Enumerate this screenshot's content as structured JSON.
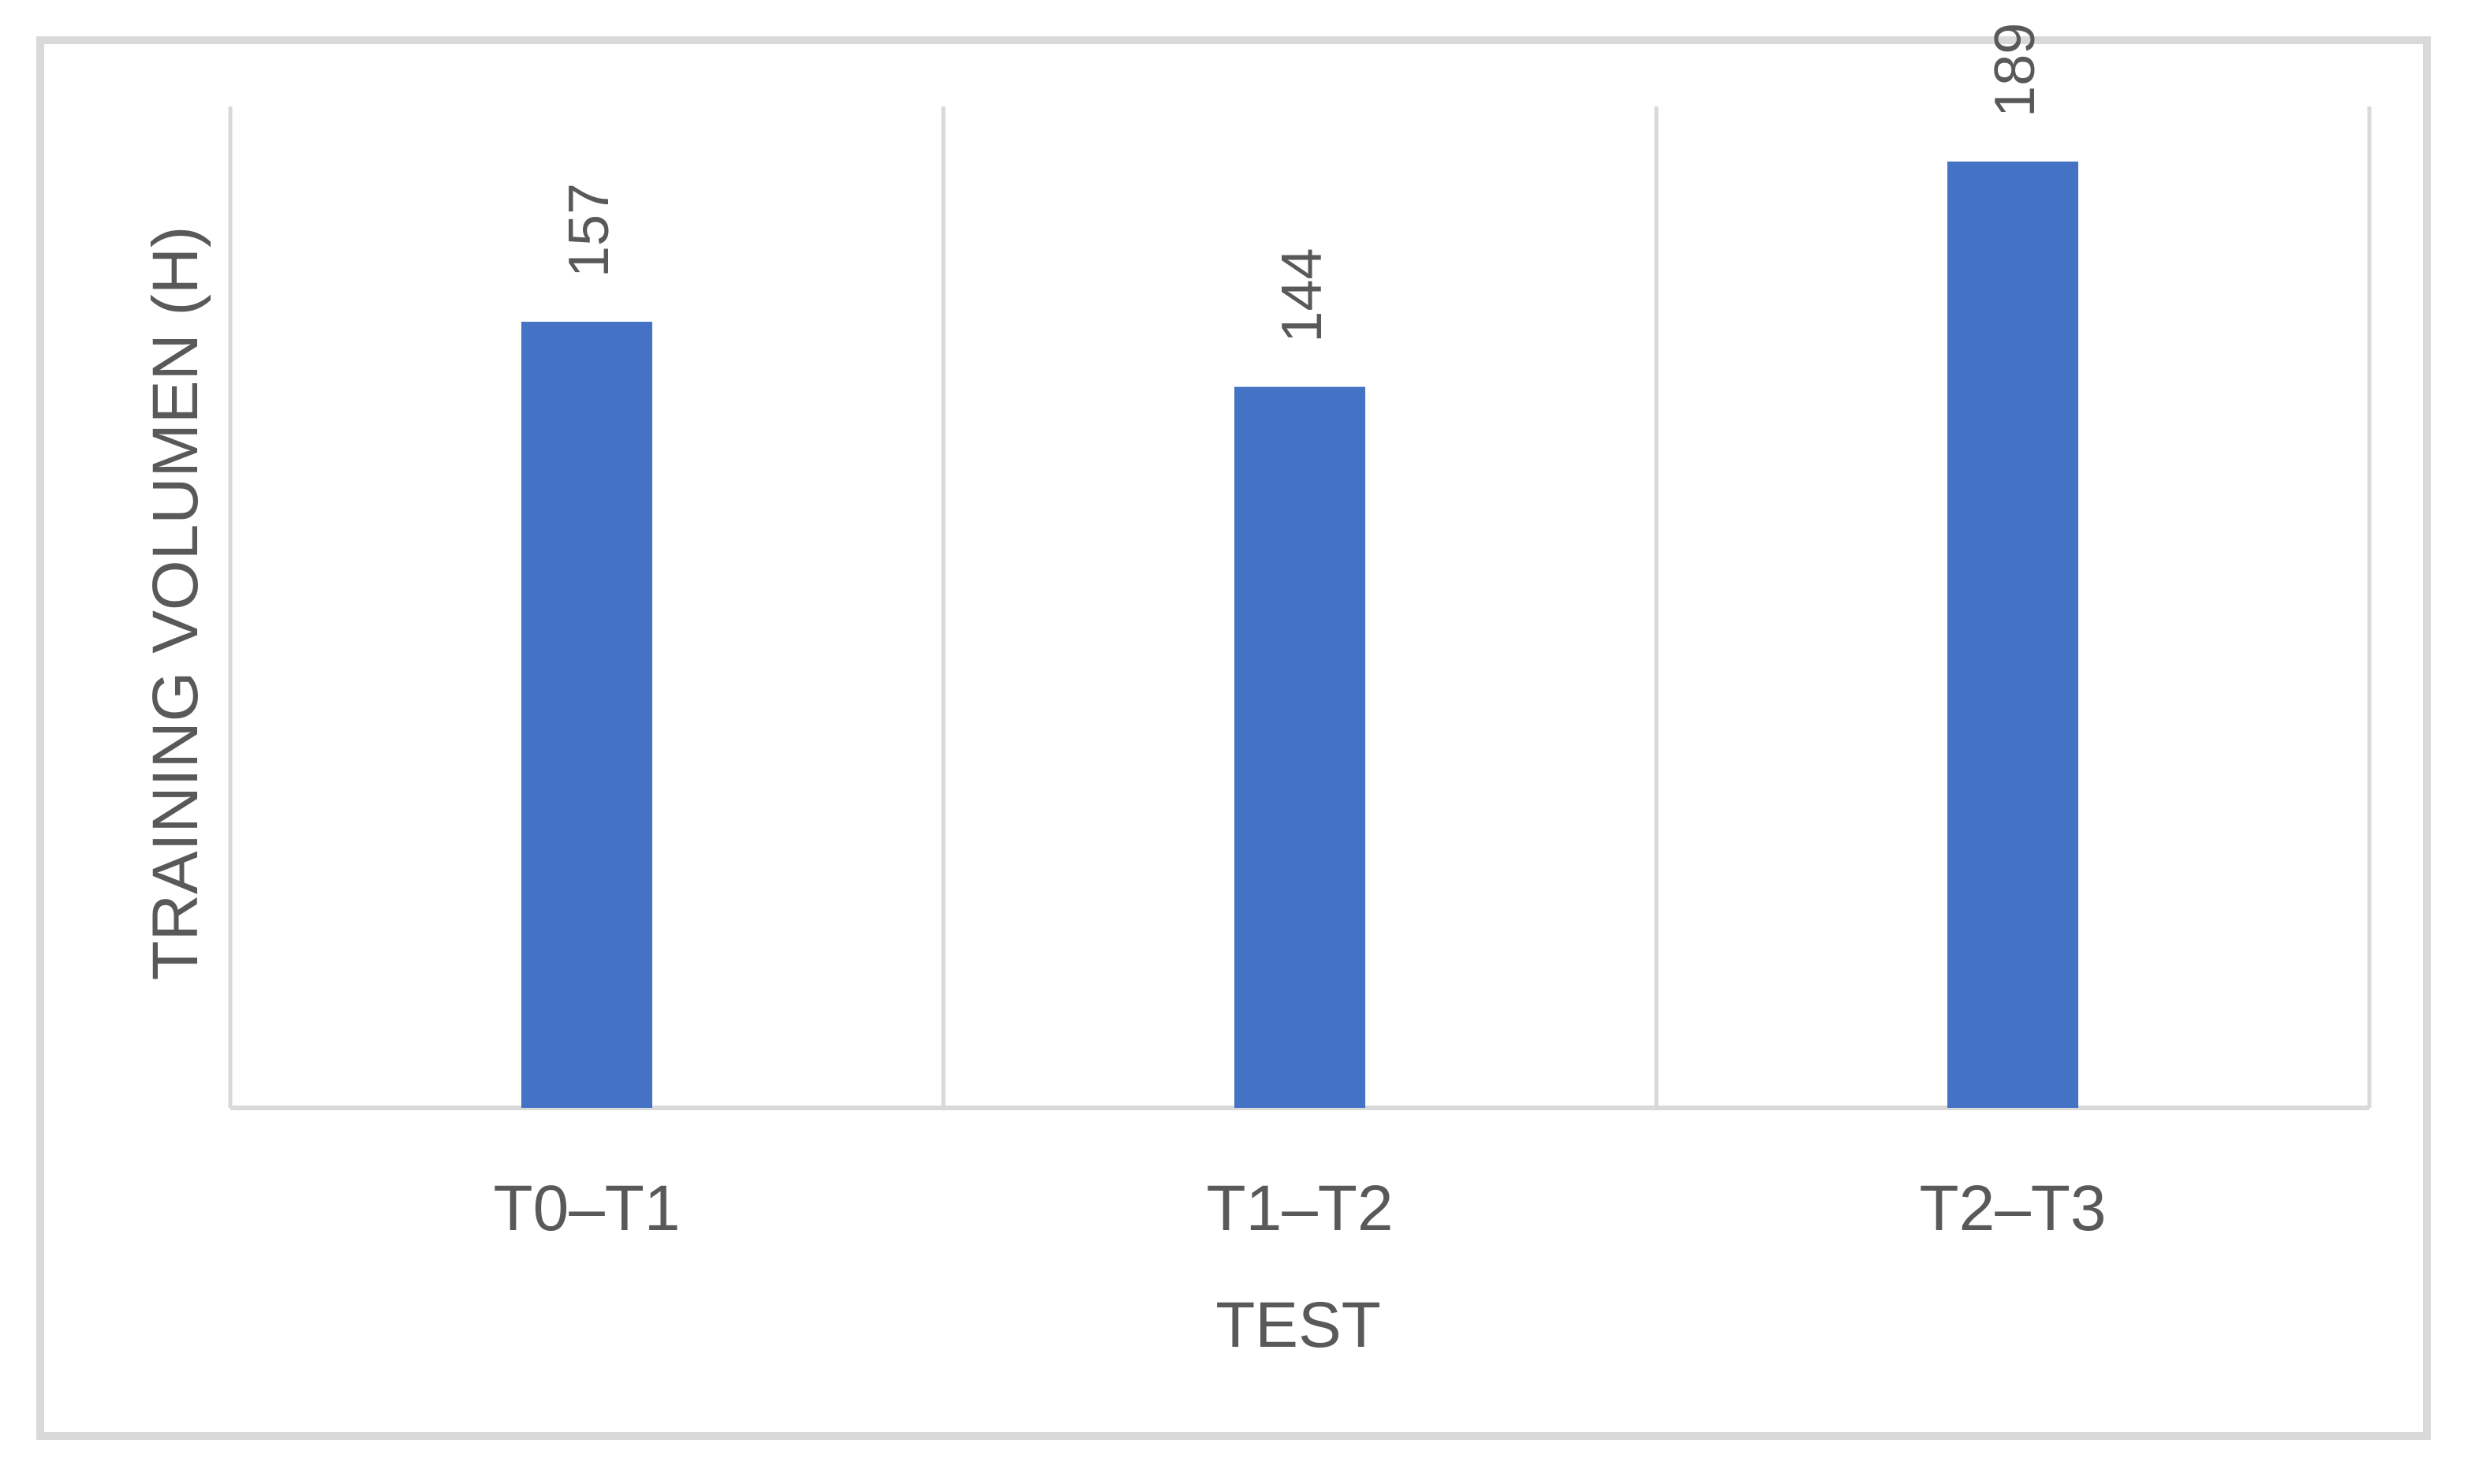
{
  "chart_data": {
    "type": "bar",
    "title": "",
    "xlabel": "TEST",
    "ylabel": "TRAINING VOLUMEN (H)",
    "categories": [
      "T0–T1",
      "T1–T2",
      "T2–T3"
    ],
    "series": [
      {
        "values": [
          157,
          144,
          189
        ]
      }
    ],
    "ylim": [
      0,
      200
    ],
    "grid": "vertical separators between categories",
    "data_labels": "rotated above bars",
    "colors": {
      "bar": "#4472C4",
      "grid": "#d9d9d9",
      "text": "#595959",
      "frame": "#d9d9d9"
    }
  }
}
